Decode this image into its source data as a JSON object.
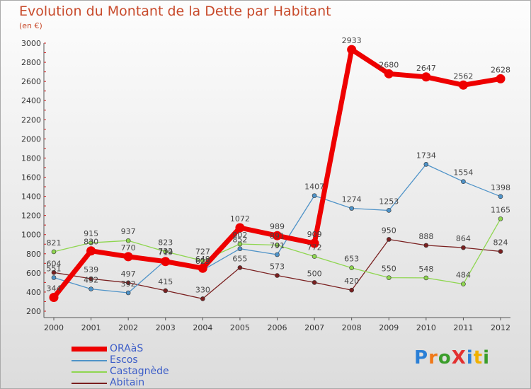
{
  "header": {
    "title": "Evolution du Montant de la Dette par Habitant",
    "subtitle": "(en €)"
  },
  "logo": {
    "text": "ProXiti",
    "colors": [
      "#2a7fd6",
      "#f07818",
      "#3a9d2a",
      "#e23030",
      "#2a7fd6",
      "#f0b000",
      "#3a9d2a"
    ]
  },
  "chart_data": {
    "type": "line",
    "x": [
      "2000",
      "2001",
      "2002",
      "2003",
      "2004",
      "2005",
      "2006",
      "2007",
      "2008",
      "2009",
      "2010",
      "2011",
      "2012"
    ],
    "ylim": [
      200,
      3000
    ],
    "yticks": [
      200,
      400,
      600,
      800,
      1000,
      1200,
      1400,
      1600,
      1800,
      2000,
      2200,
      2400,
      2600,
      2800,
      3000
    ],
    "grid": false,
    "legend_position": "bottom-left",
    "series": [
      {
        "name": "Abitain",
        "color": "#7a2020",
        "values": [
          604,
          539,
          497,
          415,
          330,
          655,
          573,
          500,
          420,
          950,
          888,
          864,
          824
        ]
      },
      {
        "name": "Castagnède",
        "color": "#8fd650",
        "values": [
          821,
          915,
          937,
          823,
          727,
          902,
          891,
          772,
          653,
          550,
          548,
          484,
          1165
        ]
      },
      {
        "name": "Escos",
        "color": "#4f93c8",
        "values": [
          551,
          432,
          392,
          732,
          629,
          852,
          791,
          1407,
          1274,
          1253,
          1734,
          1554,
          1398
        ]
      },
      {
        "name": "ORAàS",
        "color": "#ee0000",
        "values": [
          344,
          830,
          770,
          719,
          649,
          1072,
          989,
          909,
          2933,
          2680,
          2647,
          2562,
          2628
        ]
      }
    ],
    "legend_order": [
      3,
      2,
      1,
      0
    ]
  }
}
